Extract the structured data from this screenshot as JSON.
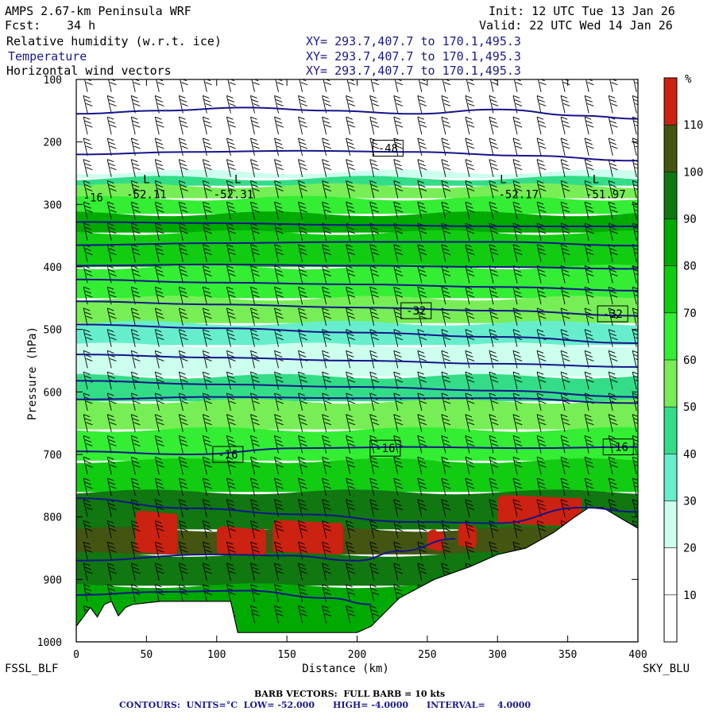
{
  "header": {
    "model": "AMPS 2.67-km Peninsula WRF",
    "init": "Init: 12 UTC Tue 13 Jan 26",
    "fcst_label": "Fcst:",
    "fcst_value": "34 h",
    "valid": "Valid: 22 UTC Wed 14 Jan 26",
    "fields": [
      {
        "name": "Relative humidity (w.r.t. ice)",
        "xy": "XY= 293.7,407.7 to 170.1,495.3"
      },
      {
        "name": "Temperature",
        "xy": "XY= 293.7,407.7 to 170.1,495.3"
      },
      {
        "name": "Horizontal wind vectors",
        "xy": "XY= 293.7,407.7 to 170.1,495.3"
      }
    ]
  },
  "chart_data": {
    "type": "heatmap",
    "xlabel": "Distance (km)",
    "ylabel": "Pressure (hPa)",
    "xlim": [
      0,
      400
    ],
    "ylim": [
      1000,
      100
    ],
    "x_ticks": [
      0,
      50,
      100,
      150,
      200,
      250,
      300,
      350,
      400
    ],
    "y_ticks": [
      100,
      200,
      300,
      400,
      500,
      600,
      700,
      800,
      900,
      1000
    ],
    "x_tick_labels": [
      "0",
      "50",
      "100",
      "150",
      "200",
      "250",
      "300",
      "350",
      "400"
    ],
    "y_tick_labels": [
      "100",
      "200",
      "300",
      "400",
      "500",
      "600",
      "700",
      "800",
      "900",
      "1000"
    ],
    "left_label": "FSSL_BLF",
    "right_label": "SKY_BLU",
    "colorbar": {
      "unit": "%",
      "labels": [
        "10",
        "20",
        "30",
        "40",
        "50",
        "60",
        "70",
        "80",
        "90",
        "100",
        "110"
      ],
      "levels": [
        0,
        10,
        20,
        30,
        40,
        50,
        60,
        70,
        80,
        90,
        100,
        110,
        120
      ],
      "colors": [
        "#ffffff",
        "#ffffff",
        "#ffffff",
        "#ccffee",
        "#66eecc",
        "#33dd88",
        "#77ee55",
        "#33ee33",
        "#11cc11",
        "#00aa00",
        "#117711",
        "#445511",
        "#cc2211"
      ]
    },
    "humidity_bands": [
      {
        "p_top": 100,
        "p_bot": 248,
        "rh": 5
      },
      {
        "p_top": 248,
        "p_bot": 258,
        "rh": 35
      },
      {
        "p_top": 258,
        "p_bot": 270,
        "rh": 50
      },
      {
        "p_top": 270,
        "p_bot": 290,
        "rh": 65
      },
      {
        "p_top": 290,
        "p_bot": 315,
        "rh": 75
      },
      {
        "p_top": 315,
        "p_bot": 345,
        "rh": 92
      },
      {
        "p_top": 345,
        "p_bot": 400,
        "rh": 85
      },
      {
        "p_top": 400,
        "p_bot": 450,
        "rh": 75
      },
      {
        "p_top": 450,
        "p_bot": 490,
        "rh": 62
      },
      {
        "p_top": 490,
        "p_bot": 525,
        "rh": 48
      },
      {
        "p_top": 525,
        "p_bot": 575,
        "rh": 38
      },
      {
        "p_top": 575,
        "p_bot": 615,
        "rh": 52
      },
      {
        "p_top": 615,
        "p_bot": 660,
        "rh": 68
      },
      {
        "p_top": 660,
        "p_bot": 710,
        "rh": 76
      },
      {
        "p_top": 710,
        "p_bot": 760,
        "rh": 88
      },
      {
        "p_top": 760,
        "p_bot": 820,
        "rh": 104
      },
      {
        "p_top": 820,
        "p_bot": 860,
        "rh": 112
      },
      {
        "p_top": 860,
        "p_bot": 910,
        "rh": 100
      },
      {
        "p_top": 910,
        "p_bot": 1000,
        "rh": 92
      }
    ],
    "saturated_patches": [
      {
        "x0": 42,
        "x1": 72,
        "p_top": 790,
        "p_bot": 860
      },
      {
        "x0": 100,
        "x1": 135,
        "p_top": 815,
        "p_bot": 862
      },
      {
        "x0": 140,
        "x1": 190,
        "p_top": 805,
        "p_bot": 860
      },
      {
        "x0": 250,
        "x1": 262,
        "p_top": 820,
        "p_bot": 855
      },
      {
        "x0": 272,
        "x1": 285,
        "p_top": 810,
        "p_bot": 850
      },
      {
        "x0": 300,
        "x1": 360,
        "p_top": 765,
        "p_bot": 815
      }
    ],
    "terrain": [
      [
        0,
        1000
      ],
      [
        0,
        975
      ],
      [
        10,
        945
      ],
      [
        15,
        960
      ],
      [
        20,
        940
      ],
      [
        25,
        935
      ],
      [
        30,
        958
      ],
      [
        35,
        945
      ],
      [
        40,
        940
      ],
      [
        60,
        935
      ],
      [
        110,
        935
      ],
      [
        115,
        985
      ],
      [
        150,
        985
      ],
      [
        200,
        985
      ],
      [
        210,
        975
      ],
      [
        230,
        930
      ],
      [
        255,
        900
      ],
      [
        280,
        880
      ],
      [
        300,
        860
      ],
      [
        320,
        850
      ],
      [
        340,
        825
      ],
      [
        355,
        800
      ],
      [
        365,
        785
      ],
      [
        375,
        785
      ],
      [
        390,
        805
      ],
      [
        400,
        818
      ],
      [
        400,
        1000
      ]
    ],
    "isotherms": [
      {
        "label": "",
        "points": [
          [
            0,
            155
          ],
          [
            60,
            150
          ],
          [
            120,
            145
          ],
          [
            180,
            150
          ],
          [
            240,
            155
          ],
          [
            300,
            148
          ],
          [
            360,
            158
          ],
          [
            400,
            163
          ]
        ]
      },
      {
        "label": "-48",
        "points": [
          [
            0,
            220
          ],
          [
            80,
            216
          ],
          [
            160,
            214
          ],
          [
            240,
            216
          ],
          [
            320,
            222
          ],
          [
            400,
            230
          ]
        ]
      },
      {
        "label": "",
        "points": [
          [
            0,
            328
          ],
          [
            100,
            330
          ],
          [
            200,
            333
          ],
          [
            300,
            335
          ],
          [
            400,
            335
          ]
        ]
      },
      {
        "label": "",
        "points": [
          [
            0,
            365
          ],
          [
            100,
            362
          ],
          [
            200,
            360
          ],
          [
            300,
            360
          ],
          [
            400,
            366
          ]
        ]
      },
      {
        "label": "",
        "points": [
          [
            0,
            398
          ],
          [
            100,
            396
          ],
          [
            200,
            398
          ],
          [
            300,
            400
          ],
          [
            400,
            403
          ]
        ]
      },
      {
        "label": "",
        "points": [
          [
            0,
            420
          ],
          [
            100,
            425
          ],
          [
            200,
            428
          ],
          [
            300,
            432
          ],
          [
            400,
            438
          ]
        ]
      },
      {
        "label": "-32",
        "points": [
          [
            0,
            455
          ],
          [
            100,
            460
          ],
          [
            200,
            465
          ],
          [
            300,
            470
          ],
          [
            400,
            478
          ]
        ]
      },
      {
        "label": "",
        "points": [
          [
            0,
            492
          ],
          [
            100,
            498
          ],
          [
            200,
            505
          ],
          [
            300,
            512
          ],
          [
            400,
            522
          ]
        ]
      },
      {
        "label": "",
        "points": [
          [
            0,
            540
          ],
          [
            100,
            545
          ],
          [
            200,
            550
          ],
          [
            300,
            555
          ],
          [
            400,
            560
          ]
        ]
      },
      {
        "label": "",
        "points": [
          [
            0,
            582
          ],
          [
            100,
            588
          ],
          [
            200,
            592
          ],
          [
            300,
            598
          ],
          [
            400,
            608
          ]
        ]
      },
      {
        "label": "",
        "points": [
          [
            0,
            612
          ],
          [
            100,
            608
          ],
          [
            200,
            610
          ],
          [
            300,
            610
          ],
          [
            400,
            618
          ]
        ]
      },
      {
        "label": "-16",
        "points": [
          [
            0,
            695
          ],
          [
            80,
            700
          ],
          [
            160,
            690
          ],
          [
            240,
            688
          ],
          [
            320,
            690
          ],
          [
            400,
            688
          ]
        ]
      },
      {
        "label": "",
        "points": [
          [
            0,
            770
          ],
          [
            80,
            786
          ],
          [
            160,
            796
          ],
          [
            240,
            808
          ],
          [
            300,
            810
          ],
          [
            360,
            785
          ],
          [
            400,
            792
          ]
        ]
      },
      {
        "label": "",
        "points": [
          [
            0,
            870
          ],
          [
            100,
            860
          ],
          [
            150,
            862
          ],
          [
            200,
            870
          ],
          [
            230,
            855
          ],
          [
            270,
            835
          ]
        ]
      },
      {
        "label": "",
        "points": [
          [
            0,
            925
          ],
          [
            60,
            920
          ],
          [
            120,
            918
          ],
          [
            180,
            930
          ],
          [
            210,
            940
          ]
        ]
      }
    ],
    "isotherm_labels": [
      {
        "text": "-48",
        "x": 222,
        "p": 210
      },
      {
        "text": "-32",
        "x": 242,
        "p": 470
      },
      {
        "text": "-32",
        "x": 382,
        "p": 475
      },
      {
        "text": "-16",
        "x": 108,
        "p": 700
      },
      {
        "text": "-16",
        "x": 220,
        "p": 690
      },
      {
        "text": "-16",
        "x": 386,
        "p": 688
      }
    ],
    "min_labels": [
      {
        "text": "-16",
        "x": 12,
        "p": 295
      },
      {
        "text": "-52.11",
        "x": 50,
        "p": 290
      },
      {
        "text": "L",
        "x": 50,
        "p": 266
      },
      {
        "text": "-52.31",
        "x": 112,
        "p": 290
      },
      {
        "text": "L",
        "x": 115,
        "p": 266
      },
      {
        "text": "-52.17",
        "x": 315,
        "p": 290
      },
      {
        "text": "L",
        "x": 304,
        "p": 266
      },
      {
        "text": "-51.97",
        "x": 377,
        "p": 290
      },
      {
        "text": "L",
        "x": 370,
        "p": 266
      }
    ]
  },
  "footer": {
    "barb": "BARB VECTORS:  FULL BARB = 10 kts",
    "contours": "CONTOURS:  UNITS=°C  LOW= -52.000      HIGH= -4.0000      INTERVAL=    4.0000"
  }
}
